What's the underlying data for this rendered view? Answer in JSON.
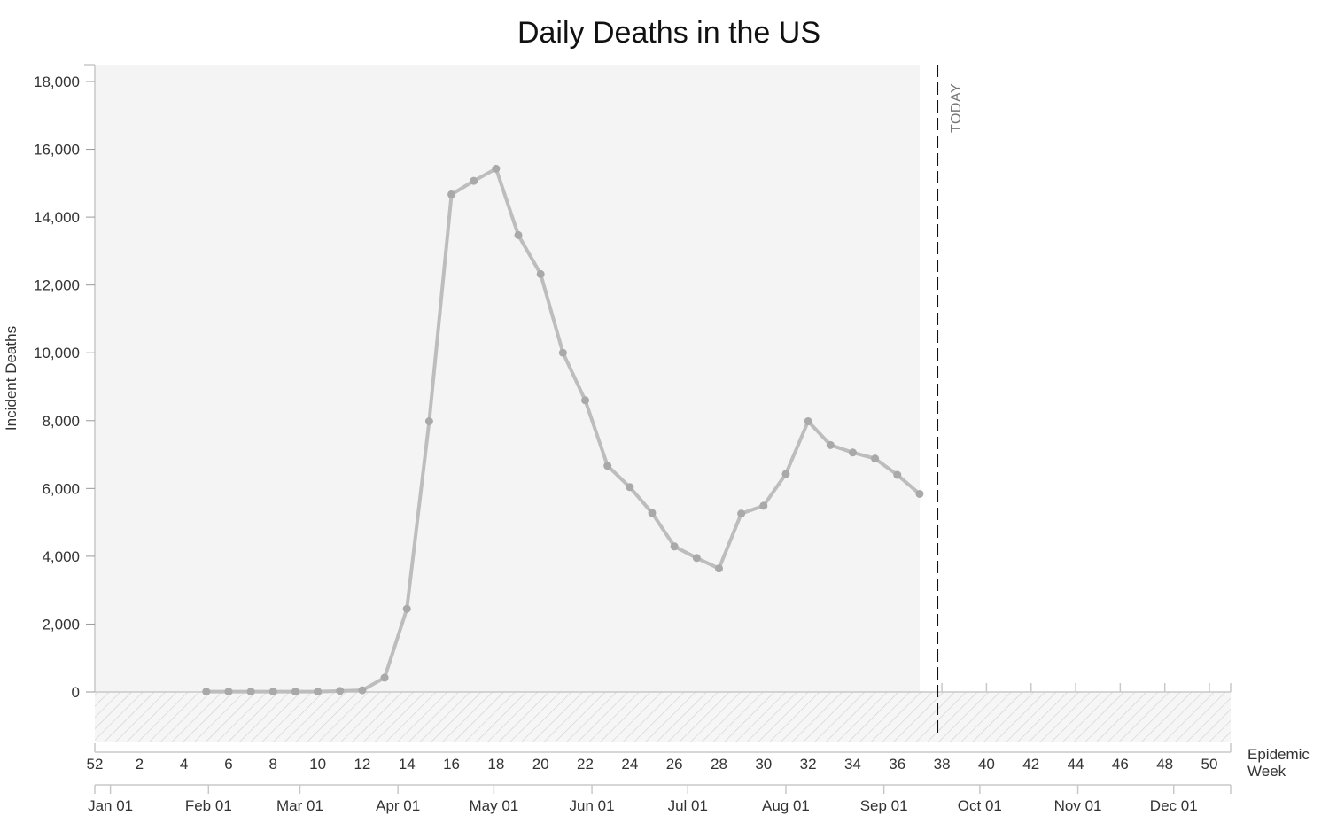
{
  "chart_data": {
    "type": "line",
    "title": "Daily Deaths in the US",
    "ylabel": "Incident Deaths",
    "xlabel": "Epidemic Week",
    "ylim": [
      0,
      18000
    ],
    "yticks": [
      0,
      2000,
      4000,
      6000,
      8000,
      10000,
      12000,
      14000,
      16000,
      18000
    ],
    "ytick_labels": [
      "0",
      "2,000",
      "4,000",
      "6,000",
      "8,000",
      "10,000",
      "12,000",
      "14,000",
      "16,000",
      "18,000"
    ],
    "week_range": [
      52,
      51
    ],
    "week_ticks": [
      52,
      2,
      4,
      6,
      8,
      10,
      12,
      14,
      16,
      18,
      20,
      22,
      24,
      26,
      28,
      30,
      32,
      34,
      36,
      38,
      40,
      42,
      44,
      46,
      48,
      50
    ],
    "month_ticks": [
      {
        "label": "Jan 01",
        "week": 0.7
      },
      {
        "label": "Feb 01",
        "week": 5.1
      },
      {
        "label": "Mar 01",
        "week": 9.2
      },
      {
        "label": "Apr 01",
        "week": 13.6
      },
      {
        "label": "May 01",
        "week": 17.9
      },
      {
        "label": "Jun 01",
        "week": 22.3
      },
      {
        "label": "Jul 01",
        "week": 26.6
      },
      {
        "label": "Aug 01",
        "week": 31.0
      },
      {
        "label": "Sep 01",
        "week": 35.4
      },
      {
        "label": "Oct 01",
        "week": 39.7
      },
      {
        "label": "Nov 01",
        "week": 44.1
      },
      {
        "label": "Dec 01",
        "week": 48.4
      }
    ],
    "today_label": "TODAY",
    "today_week": 37.8,
    "observed_until_week": 37,
    "grid": false,
    "series": [
      {
        "x": [
          5,
          6,
          7,
          8,
          9,
          10,
          11,
          12,
          13,
          14,
          15,
          16,
          17,
          18,
          19,
          20,
          21,
          22,
          23,
          24,
          25,
          26,
          27,
          28,
          29,
          30,
          31,
          32,
          33,
          34,
          35,
          36,
          37
        ],
        "values": [
          10,
          10,
          10,
          10,
          10,
          10,
          30,
          50,
          420,
          2450,
          7980,
          14670,
          15070,
          15430,
          13470,
          12320,
          10000,
          8600,
          6670,
          6040,
          5280,
          4290,
          3950,
          3640,
          5260,
          5490,
          6430,
          7980,
          7280,
          7060,
          6880,
          6400,
          5840
        ],
        "color": "#bdbdbd"
      }
    ]
  }
}
